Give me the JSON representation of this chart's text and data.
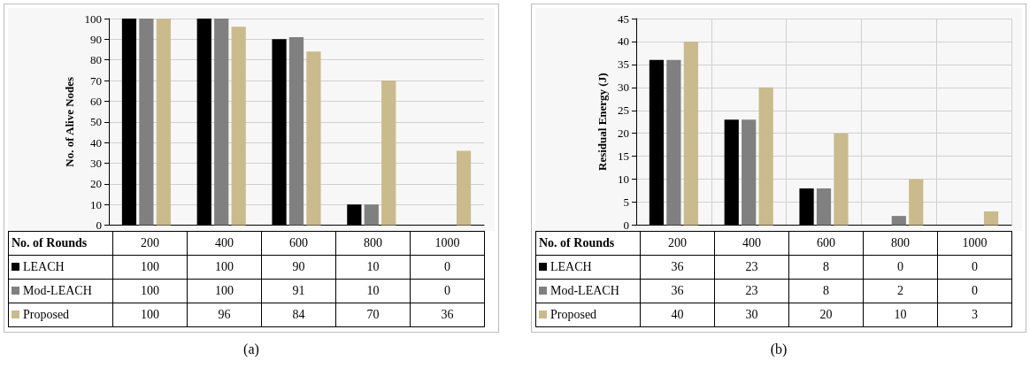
{
  "chart_data": [
    {
      "type": "bar",
      "xlabel": "No. of Rounds",
      "ylabel": "No. of Alive Nodes",
      "categories": [
        "200",
        "400",
        "600",
        "800",
        "1000"
      ],
      "series": [
        {
          "name": "LEACH",
          "color": "#000000",
          "values": [
            100,
            100,
            90,
            10,
            0
          ]
        },
        {
          "name": "Mod-LEACH",
          "color": "#808080",
          "values": [
            100,
            100,
            91,
            10,
            0
          ]
        },
        {
          "name": "Proposed",
          "color": "#c9bb8c",
          "values": [
            100,
            96,
            84,
            70,
            36
          ]
        }
      ],
      "ylim": [
        0,
        100
      ],
      "yticks": [
        0,
        10,
        20,
        30,
        40,
        50,
        60,
        70,
        80,
        90,
        100
      ],
      "grid": "y",
      "legend": "bottom",
      "data_labels": true,
      "annotations": [
        "(a)"
      ]
    },
    {
      "type": "bar",
      "xlabel": "No. of Rounds",
      "ylabel": "Residual Energy (J)",
      "categories": [
        "200",
        "400",
        "600",
        "800",
        "1000"
      ],
      "series": [
        {
          "name": "LEACH",
          "color": "#000000",
          "values": [
            36,
            23,
            8,
            0,
            0
          ]
        },
        {
          "name": "Mod-LEACH",
          "color": "#808080",
          "values": [
            36,
            23,
            8,
            2,
            0
          ]
        },
        {
          "name": "Proposed",
          "color": "#c9bb8c",
          "values": [
            40,
            30,
            20,
            10,
            3
          ]
        }
      ],
      "ylim": [
        0,
        45
      ],
      "yticks": [
        0,
        5,
        10,
        15,
        20,
        25,
        30,
        35,
        40,
        45
      ],
      "grid": true,
      "legend": "bottom",
      "data_labels": true,
      "annotations": [
        "(b)"
      ]
    }
  ]
}
